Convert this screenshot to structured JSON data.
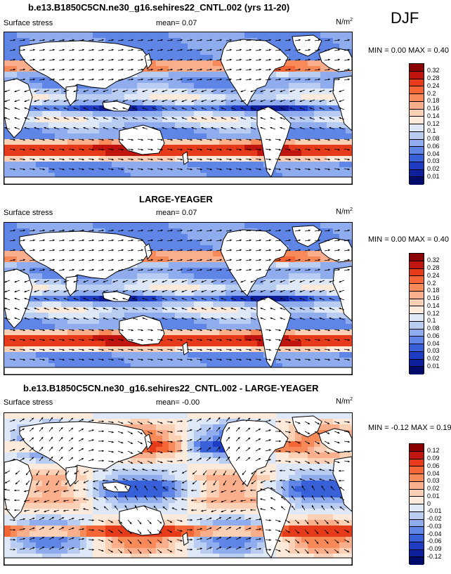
{
  "season": "DJF",
  "panels": [
    {
      "title": "b.e13.B1850C5CN.ne30_g16.sehires22_CNTL.002 (yrs 11-20)",
      "left_label": "Surface stress",
      "mean_label": "mean=  0.07",
      "units_base": "N/m",
      "units_exp": "2",
      "minmax": "MIN =  0.00 MAX =  0.40",
      "colorbar": {
        "labels": [
          "0.32",
          "0.28",
          "0.24",
          "0.2",
          "0.18",
          "0.16",
          "0.14",
          "0.12",
          "0.1",
          "0.08",
          "0.06",
          "0.04",
          "0.03",
          "0.02",
          "0.01"
        ],
        "colors": [
          "#8b0000",
          "#c0150f",
          "#e63b1a",
          "#f56637",
          "#f88a5a",
          "#fbae8c",
          "#fbd0b4",
          "#fdeadb",
          "#dfe8f7",
          "#b9ccf2",
          "#8fadee",
          "#5f86e6",
          "#3860d8",
          "#1f3cc4",
          "#0d1f9a",
          "#000a6b"
        ]
      },
      "chart_data": {
        "type": "heatmap",
        "variable": "Surface stress",
        "units": "N/m^2",
        "mean": 0.07,
        "min": 0.0,
        "max": 0.4,
        "levels": [
          0.01,
          0.02,
          0.03,
          0.04,
          0.06,
          0.08,
          0.1,
          0.12,
          0.14,
          0.16,
          0.18,
          0.2,
          0.24,
          0.28,
          0.32
        ]
      }
    },
    {
      "title": "LARGE-YEAGER",
      "left_label": "Surface stress",
      "mean_label": "mean=  0.07",
      "units_base": "N/m",
      "units_exp": "2",
      "minmax": "MIN =  0.00 MAX =  0.40",
      "colorbar": {
        "labels": [
          "0.32",
          "0.28",
          "0.24",
          "0.2",
          "0.18",
          "0.16",
          "0.14",
          "0.12",
          "0.1",
          "0.08",
          "0.06",
          "0.04",
          "0.03",
          "0.02",
          "0.01"
        ],
        "colors": [
          "#8b0000",
          "#c0150f",
          "#e63b1a",
          "#f56637",
          "#f88a5a",
          "#fbae8c",
          "#fbd0b4",
          "#fdeadb",
          "#dfe8f7",
          "#b9ccf2",
          "#8fadee",
          "#5f86e6",
          "#3860d8",
          "#1f3cc4",
          "#0d1f9a",
          "#000a6b"
        ]
      },
      "chart_data": {
        "type": "heatmap",
        "variable": "Surface stress",
        "units": "N/m^2",
        "mean": 0.07,
        "min": 0.0,
        "max": 0.4,
        "levels": [
          0.01,
          0.02,
          0.03,
          0.04,
          0.06,
          0.08,
          0.1,
          0.12,
          0.14,
          0.16,
          0.18,
          0.2,
          0.24,
          0.28,
          0.32
        ]
      }
    },
    {
      "title": "b.e13.B1850C5CN.ne30_g16.sehires22_CNTL.002 - LARGE-YEAGER",
      "left_label": "Surface stress",
      "mean_label": "mean=  -0.00",
      "units_base": "N/m",
      "units_exp": "2",
      "minmax": "MIN = -0.12 MAX =  0.19",
      "colorbar": {
        "labels": [
          "0.12",
          "0.09",
          "0.06",
          "0.04",
          "0.03",
          "0.02",
          "0.01",
          "0",
          "-0.01",
          "-0.02",
          "-0.03",
          "-0.04",
          "-0.06",
          "-0.09",
          "-0.12"
        ],
        "colors": [
          "#8b0000",
          "#c0150f",
          "#e63b1a",
          "#f56637",
          "#f88a5a",
          "#fbae8c",
          "#fbd0b4",
          "#fdeadb",
          "#dfe8f7",
          "#b9ccf2",
          "#8fadee",
          "#5f86e6",
          "#3860d8",
          "#1f3cc4",
          "#0d1f9a",
          "#000a6b"
        ]
      },
      "chart_data": {
        "type": "heatmap",
        "variable": "Surface stress difference",
        "units": "N/m^2",
        "mean": -0.0,
        "min": -0.12,
        "max": 0.19,
        "levels": [
          -0.12,
          -0.09,
          -0.06,
          -0.04,
          -0.03,
          -0.02,
          -0.01,
          0,
          0.01,
          0.02,
          0.03,
          0.04,
          0.06,
          0.09,
          0.12
        ]
      }
    }
  ]
}
